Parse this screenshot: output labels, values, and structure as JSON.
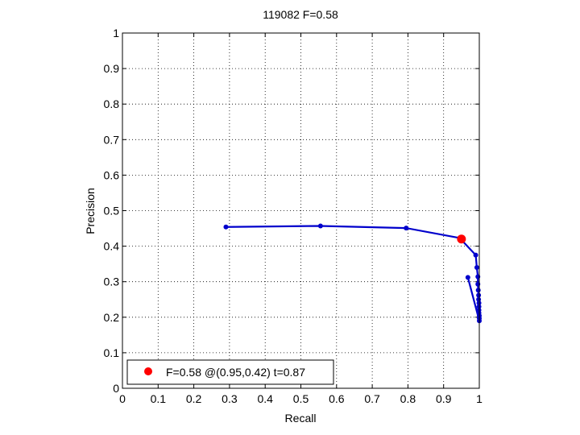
{
  "chart_data": {
    "type": "line",
    "title": "119082 F=0.58",
    "xlabel": "Recall",
    "ylabel": "Precision",
    "xlim": [
      0,
      1
    ],
    "ylim": [
      0,
      1
    ],
    "xticks": [
      "0",
      "0.1",
      "0.2",
      "0.3",
      "0.4",
      "0.5",
      "0.6",
      "0.7",
      "0.8",
      "0.9",
      "1"
    ],
    "yticks": [
      "0",
      "0.1",
      "0.2",
      "0.3",
      "0.4",
      "0.5",
      "0.6",
      "0.7",
      "0.8",
      "0.9",
      "1"
    ],
    "grid": true,
    "series": [
      {
        "color": "#0000cc",
        "points": [
          [
            0.29,
            0.454
          ],
          [
            0.555,
            0.457
          ],
          [
            0.795,
            0.451
          ],
          [
            0.945,
            0.423
          ],
          [
            0.99,
            0.375
          ],
          [
            0.993,
            0.34
          ],
          [
            0.996,
            0.314
          ],
          [
            0.996,
            0.293
          ],
          [
            0.997,
            0.276
          ],
          [
            0.998,
            0.262
          ],
          [
            0.998,
            0.25
          ],
          [
            0.999,
            0.24
          ],
          [
            0.999,
            0.23
          ],
          [
            0.999,
            0.22
          ],
          [
            0.999,
            0.212
          ],
          [
            1.0,
            0.204
          ],
          [
            1.0,
            0.197
          ],
          [
            1.0,
            0.19
          ],
          [
            0.968,
            0.312
          ]
        ]
      }
    ],
    "highlight": {
      "x": 0.95,
      "y": 0.42,
      "color": "#ff0000"
    },
    "legend": {
      "placement": "bottom-left",
      "label": "F=0.58 @(0.95,0.42) t=0.87"
    }
  }
}
